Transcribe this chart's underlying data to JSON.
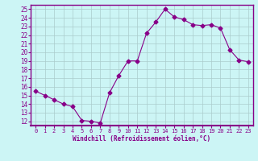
{
  "x": [
    0,
    1,
    2,
    3,
    4,
    5,
    6,
    7,
    8,
    9,
    10,
    11,
    12,
    13,
    14,
    15,
    16,
    17,
    18,
    19,
    20,
    21,
    22,
    23
  ],
  "y": [
    15.5,
    15.0,
    14.5,
    14.0,
    13.7,
    12.1,
    12.0,
    11.8,
    15.3,
    17.3,
    19.0,
    19.0,
    22.2,
    23.5,
    25.0,
    24.1,
    23.8,
    23.2,
    23.1,
    23.2,
    22.8,
    20.3,
    19.1,
    18.9
  ],
  "line_color": "#880088",
  "marker": "D",
  "marker_size": 2.5,
  "bg_color": "#ccf5f5",
  "grid_color": "#aacccc",
  "xlabel": "Windchill (Refroidissement éolien,°C)",
  "xlim": [
    -0.5,
    23.5
  ],
  "ylim": [
    11.5,
    25.5
  ],
  "yticks": [
    12,
    13,
    14,
    15,
    16,
    17,
    18,
    19,
    20,
    21,
    22,
    23,
    24,
    25
  ],
  "xticks": [
    0,
    1,
    2,
    3,
    4,
    5,
    6,
    7,
    8,
    9,
    10,
    11,
    12,
    13,
    14,
    15,
    16,
    17,
    18,
    19,
    20,
    21,
    22,
    23
  ],
  "tick_color": "#880088",
  "label_color": "#880088",
  "spine_color": "#880088",
  "axis_line_color": "#880088"
}
